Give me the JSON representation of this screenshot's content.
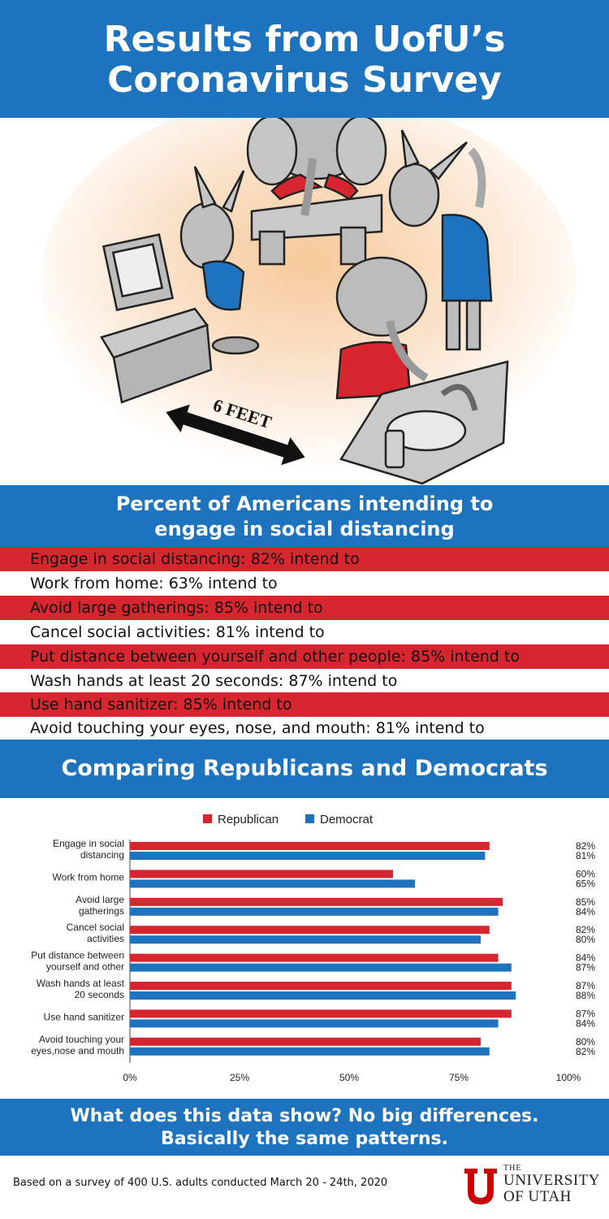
{
  "title": {
    "line1": "Results from UofU’s",
    "line2": "Coronavirus Survey"
  },
  "illustration": {
    "sign_text": "6 FEET"
  },
  "section1": {
    "heading_line1": "Percent of Americans intending to",
    "heading_line2": "engage in social distancing",
    "rows": [
      "Engage in social distancing: 82% intend to",
      "Work from home: 63% intend to",
      "Avoid large gatherings: 85% intend to",
      "Cancel social activities: 81% intend to",
      "Put distance between yourself and other people: 85% intend to",
      "Wash hands at least 20 seconds: 87% intend to",
      "Use hand sanitizer: 85% intend to",
      "Avoid touching your eyes, nose, and mouth: 81% intend to"
    ]
  },
  "section2": {
    "heading": "Comparing Republicans and Democrats"
  },
  "chart_data": {
    "type": "bar",
    "orientation": "horizontal",
    "legend_position": "top-center",
    "grid": false,
    "xlim": [
      0,
      100
    ],
    "x_ticks": [
      "0%",
      "25%",
      "50%",
      "75%",
      "100%"
    ],
    "categories": [
      [
        "Engage in social",
        "distancing"
      ],
      [
        "Work from home"
      ],
      [
        "Avoid large",
        "gatherings"
      ],
      [
        "Cancel social",
        "activities"
      ],
      [
        "Put distance between",
        "yourself and other"
      ],
      [
        "Wash hands at least",
        "20 seconds"
      ],
      [
        "Use hand sanitizer"
      ],
      [
        "Avoid touching your",
        "eyes,nose and mouth"
      ]
    ],
    "series": [
      {
        "name": "Republican",
        "color": "#d7262f",
        "values": [
          82,
          60,
          85,
          82,
          84,
          87,
          87,
          80
        ],
        "labels": [
          "82%",
          "60%",
          "85%",
          "82%",
          "84%",
          "87%",
          "87%",
          "80%"
        ]
      },
      {
        "name": "Democrat",
        "color": "#1e73be",
        "values": [
          81,
          65,
          84,
          80,
          87,
          88,
          84,
          82
        ],
        "labels": [
          "81%",
          "65%",
          "84%",
          "80%",
          "87%",
          "88%",
          "84%",
          "82%"
        ]
      }
    ]
  },
  "conclusion": {
    "line1": "What does this data show? No big differences.",
    "line2": "Basically the same patterns."
  },
  "footer": {
    "note": "Based on a survey of 400 U.S. adults conducted March 20 - 24th, 2020",
    "logo_line1": "THE",
    "logo_line2": "UNIVERSITY",
    "logo_line3": "OF UTAH"
  },
  "colors": {
    "blue": "#1e73be",
    "red": "#d7262f"
  }
}
